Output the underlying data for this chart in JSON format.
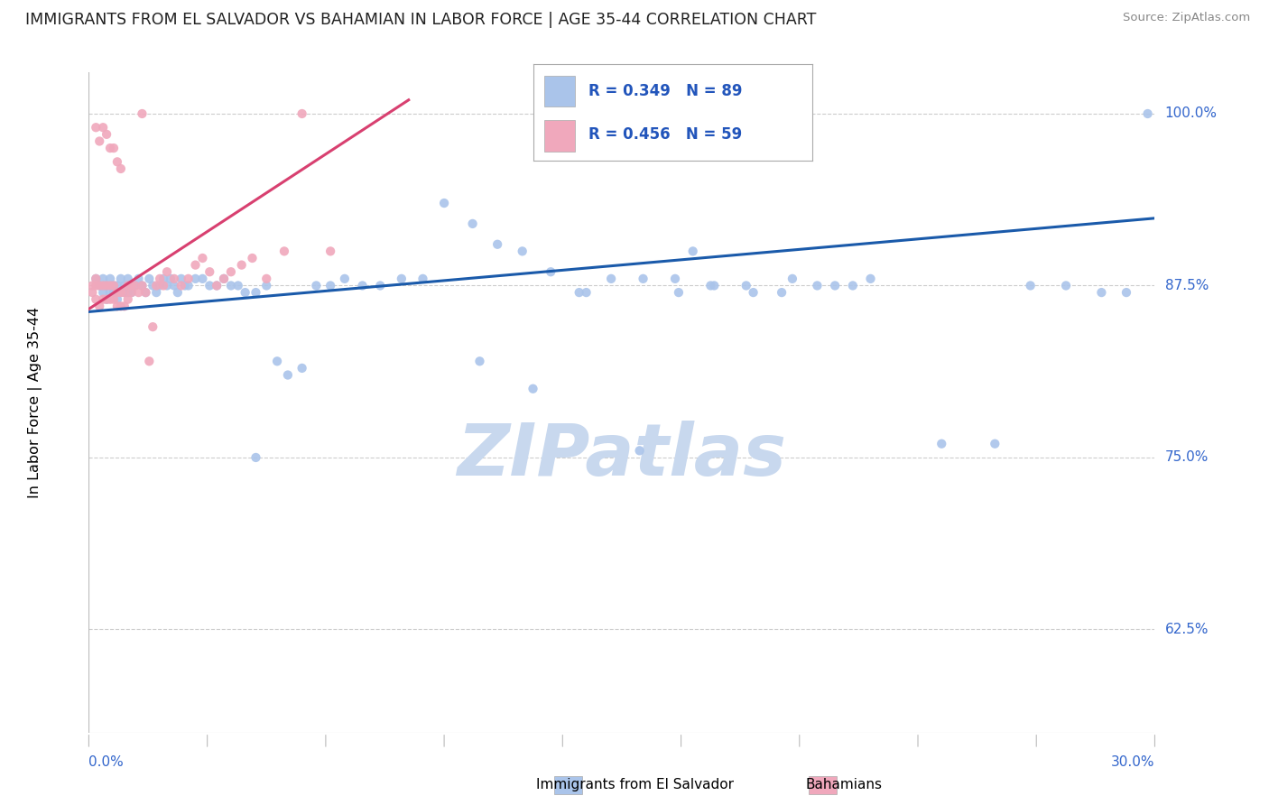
{
  "title": "IMMIGRANTS FROM EL SALVADOR VS BAHAMIAN IN LABOR FORCE | AGE 35-44 CORRELATION CHART",
  "source": "Source: ZipAtlas.com",
  "ylabel_label": "In Labor Force | Age 35-44",
  "legend_blue_r": "0.349",
  "legend_blue_n": "89",
  "legend_pink_r": "0.456",
  "legend_pink_n": "59",
  "label_blue": "Immigrants from El Salvador",
  "label_pink": "Bahamians",
  "blue_color": "#aac4ea",
  "pink_color": "#f0a8bc",
  "blue_line_color": "#1a5aaa",
  "pink_line_color": "#d84070",
  "legend_text_color": "#2255bb",
  "axis_text_color": "#3366cc",
  "title_color": "#222222",
  "watermark_color": "#c8d8ee",
  "xmin": 0.0,
  "xmax": 0.3,
  "ymin": 0.55,
  "ymax": 1.03,
  "yticks": [
    1.0,
    0.875,
    0.75,
    0.625
  ],
  "ytick_labels": [
    "100.0%",
    "87.5%",
    "75.0%",
    "62.5%"
  ],
  "blue_scatter_x": [
    0.002,
    0.003,
    0.004,
    0.004,
    0.005,
    0.005,
    0.006,
    0.006,
    0.007,
    0.007,
    0.008,
    0.008,
    0.009,
    0.009,
    0.01,
    0.01,
    0.011,
    0.011,
    0.012,
    0.012,
    0.013,
    0.014,
    0.015,
    0.016,
    0.017,
    0.018,
    0.019,
    0.02,
    0.021,
    0.022,
    0.023,
    0.024,
    0.025,
    0.026,
    0.027,
    0.028,
    0.03,
    0.032,
    0.034,
    0.036,
    0.038,
    0.04,
    0.042,
    0.044,
    0.047,
    0.05,
    0.053,
    0.056,
    0.06,
    0.064,
    0.068,
    0.072,
    0.077,
    0.082,
    0.088,
    0.094,
    0.1,
    0.108,
    0.115,
    0.122,
    0.13,
    0.138,
    0.147,
    0.156,
    0.166,
    0.176,
    0.187,
    0.198,
    0.21,
    0.22,
    0.165,
    0.175,
    0.185,
    0.195,
    0.205,
    0.215,
    0.24,
    0.255,
    0.265,
    0.275,
    0.285,
    0.292,
    0.047,
    0.11,
    0.125,
    0.14,
    0.155,
    0.298,
    0.17
  ],
  "blue_scatter_y": [
    0.88,
    0.875,
    0.87,
    0.88,
    0.865,
    0.875,
    0.87,
    0.88,
    0.87,
    0.875,
    0.865,
    0.875,
    0.87,
    0.88,
    0.87,
    0.875,
    0.87,
    0.88,
    0.875,
    0.87,
    0.875,
    0.88,
    0.875,
    0.87,
    0.88,
    0.875,
    0.87,
    0.875,
    0.88,
    0.875,
    0.88,
    0.875,
    0.87,
    0.88,
    0.875,
    0.875,
    0.88,
    0.88,
    0.875,
    0.875,
    0.88,
    0.875,
    0.875,
    0.87,
    0.87,
    0.875,
    0.82,
    0.81,
    0.815,
    0.875,
    0.875,
    0.88,
    0.875,
    0.875,
    0.88,
    0.88,
    0.935,
    0.92,
    0.905,
    0.9,
    0.885,
    0.87,
    0.88,
    0.88,
    0.87,
    0.875,
    0.87,
    0.88,
    0.875,
    0.88,
    0.88,
    0.875,
    0.875,
    0.87,
    0.875,
    0.875,
    0.76,
    0.76,
    0.875,
    0.875,
    0.87,
    0.87,
    0.75,
    0.82,
    0.8,
    0.87,
    0.755,
    1.0,
    0.9
  ],
  "pink_scatter_x": [
    0.001,
    0.001,
    0.002,
    0.002,
    0.002,
    0.003,
    0.003,
    0.004,
    0.004,
    0.005,
    0.005,
    0.006,
    0.006,
    0.007,
    0.007,
    0.008,
    0.008,
    0.009,
    0.009,
    0.01,
    0.01,
    0.011,
    0.011,
    0.012,
    0.012,
    0.013,
    0.014,
    0.015,
    0.016,
    0.017,
    0.018,
    0.019,
    0.02,
    0.021,
    0.022,
    0.024,
    0.026,
    0.028,
    0.03,
    0.032,
    0.034,
    0.036,
    0.038,
    0.04,
    0.043,
    0.046,
    0.05,
    0.055,
    0.06,
    0.068,
    0.002,
    0.003,
    0.004,
    0.005,
    0.006,
    0.007,
    0.008,
    0.009,
    0.015
  ],
  "pink_scatter_y": [
    0.87,
    0.875,
    0.865,
    0.875,
    0.88,
    0.86,
    0.875,
    0.865,
    0.875,
    0.865,
    0.875,
    0.865,
    0.875,
    0.865,
    0.875,
    0.86,
    0.87,
    0.86,
    0.87,
    0.86,
    0.87,
    0.865,
    0.875,
    0.87,
    0.875,
    0.875,
    0.87,
    0.875,
    0.87,
    0.82,
    0.845,
    0.875,
    0.88,
    0.875,
    0.885,
    0.88,
    0.875,
    0.88,
    0.89,
    0.895,
    0.885,
    0.875,
    0.88,
    0.885,
    0.89,
    0.895,
    0.88,
    0.9,
    1.0,
    0.9,
    0.99,
    0.98,
    0.99,
    0.985,
    0.975,
    0.975,
    0.965,
    0.96,
    1.0
  ],
  "blue_trend_x": [
    0.0,
    0.3
  ],
  "blue_trend_y": [
    0.856,
    0.924
  ],
  "pink_trend_x": [
    0.0,
    0.09
  ],
  "pink_trend_y": [
    0.858,
    1.01
  ],
  "grid_color": "#cccccc",
  "border_color": "#bbbbbb"
}
